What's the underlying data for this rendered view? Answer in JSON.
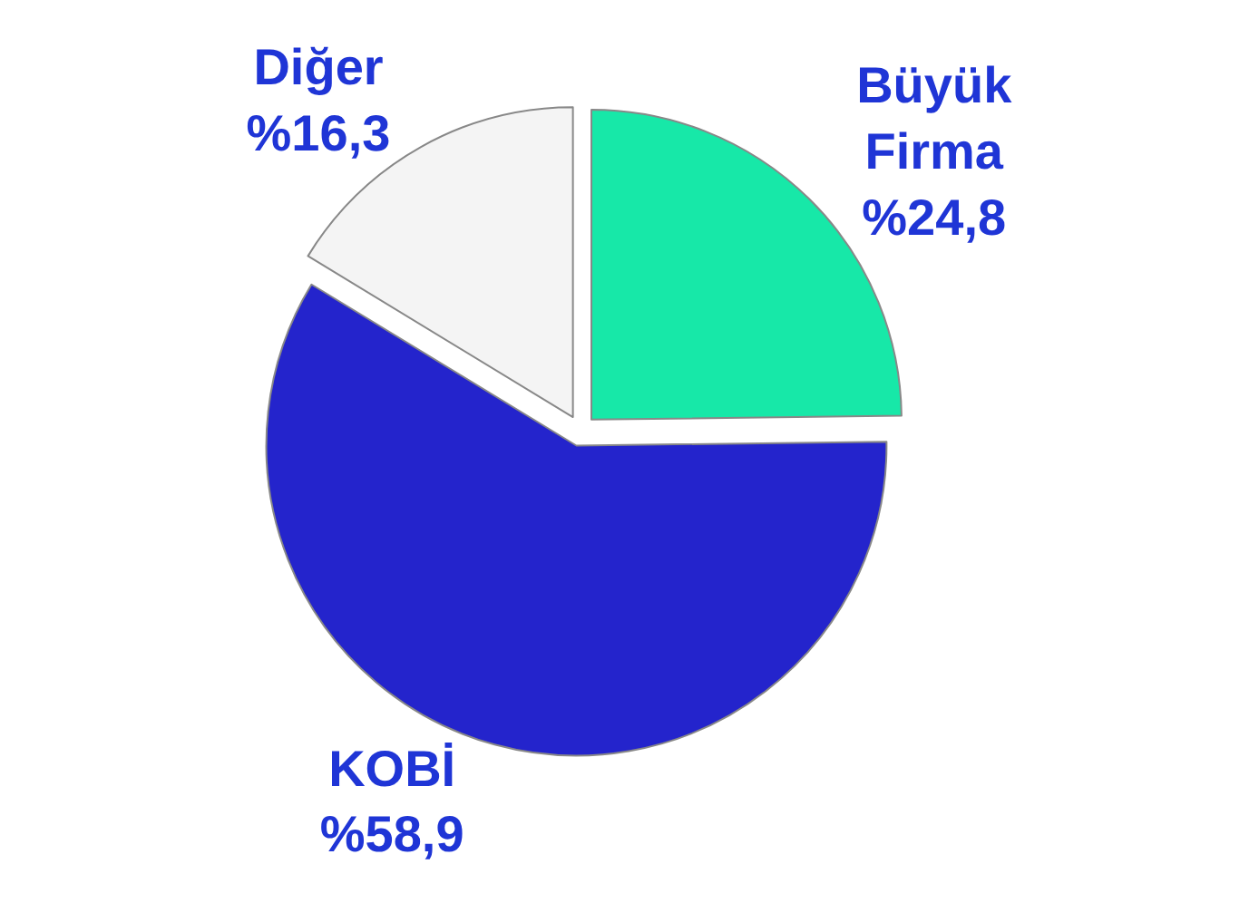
{
  "chart_data": {
    "type": "pie",
    "categories": [
      "Büyük Firma",
      "KOBİ",
      "Diğer"
    ],
    "values": [
      24.8,
      58.9,
      16.3
    ],
    "value_labels": [
      "%24,8",
      "%58,9",
      "%16,3"
    ],
    "colors": [
      "#17e8a8",
      "#2424cc",
      "#f4f4f4"
    ],
    "legend": false
  }
}
